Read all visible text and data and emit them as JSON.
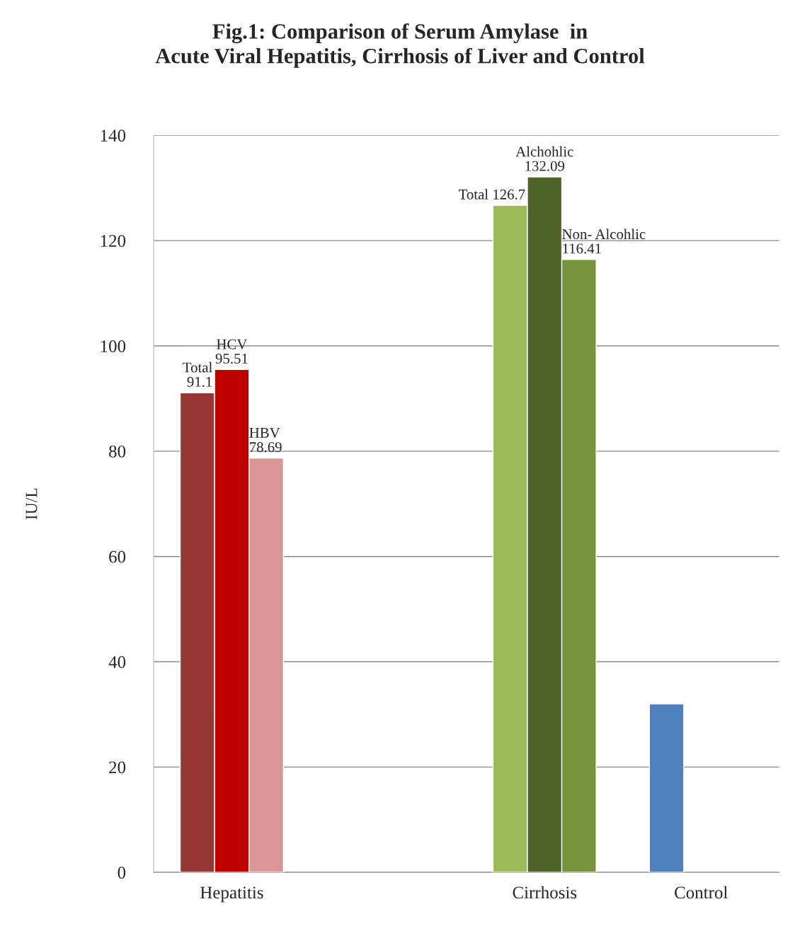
{
  "chart_data": {
    "type": "bar",
    "title": "Fig.1: Comparison of Serum Amylase  in\nAcute Viral Hepatitis, Cirrhosis of Liver and Control",
    "ylabel": "IU/L",
    "categories": [
      "Hepatitis",
      null,
      "Cirrhosis",
      "Control"
    ],
    "series": [
      {
        "colors": [
          "#953735",
          "#953735",
          "#9bbb59",
          "#4f81bd"
        ],
        "values": [
          91.1,
          null,
          126.7,
          32
        ],
        "value_labels": [
          "Total\n91.1",
          null,
          "Total 126.7",
          null
        ]
      },
      {
        "colors": [
          "#c00000",
          "#c00000",
          "#4f6228",
          "#4f6228"
        ],
        "values": [
          95.51,
          null,
          132.09,
          null
        ],
        "value_labels": [
          "HCV\n95.51",
          null,
          "Alchohlic\n132.09",
          null
        ]
      },
      {
        "colors": [
          "#d99694",
          "#d99694",
          "#77933c",
          "#77933c"
        ],
        "values": [
          78.69,
          null,
          116.41,
          null
        ],
        "value_labels": [
          "HBV\n78.69",
          null,
          "Non- Alcohlic 116.41",
          null
        ]
      }
    ],
    "ylim": [
      0,
      140
    ],
    "yticks": [
      0,
      20,
      40,
      60,
      80,
      100,
      120,
      140
    ],
    "grid": "y",
    "legend": false
  }
}
